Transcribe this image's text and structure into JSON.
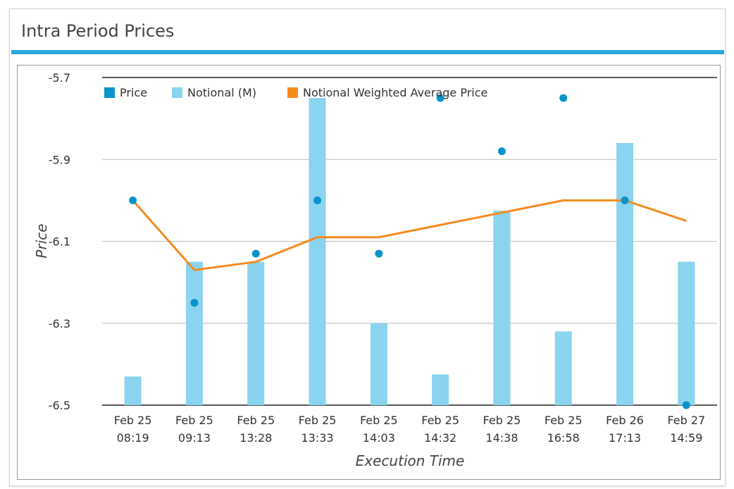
{
  "header": {
    "title": "Intra Period Prices"
  },
  "colors": {
    "accent": "#2aa8dc",
    "price": "#0a93c9",
    "notional": "#8ad4ef",
    "nwap": "#f58a1f"
  },
  "chart_data": {
    "type": "bar",
    "xlabel": "Execution Time",
    "ylabel": "Price",
    "ylim": [
      -6.5,
      -5.7
    ],
    "y_ticks": [
      "-5.7",
      "-5.9",
      "-6.1",
      "-6.3",
      "-6.5"
    ],
    "y_tick_values": [
      -5.7,
      -5.9,
      -6.1,
      -6.3,
      -6.5
    ],
    "grid": true,
    "legend_position": "top-left",
    "categories": [
      [
        "Feb 25",
        "08:19"
      ],
      [
        "Feb 25",
        "09:13"
      ],
      [
        "Feb 25",
        "13:28"
      ],
      [
        "Feb 25",
        "13:33"
      ],
      [
        "Feb 25",
        "14:03"
      ],
      [
        "Feb 25",
        "14:32"
      ],
      [
        "Feb 25",
        "14:38"
      ],
      [
        "Feb 25",
        "16:58"
      ],
      [
        "Feb 26",
        "17:13"
      ],
      [
        "Feb 27",
        "14:59"
      ]
    ],
    "series": [
      {
        "name": "Price",
        "kind": "scatter",
        "values": [
          -6.0,
          -6.25,
          -6.13,
          -6.0,
          -6.13,
          -5.75,
          -5.88,
          -5.75,
          -6.0,
          -6.5
        ]
      },
      {
        "name": "Notional (M)",
        "kind": "bar",
        "axis_scale": "price",
        "values": [
          -6.43,
          -6.15,
          -6.15,
          -5.75,
          -6.3,
          -6.425,
          -6.025,
          -6.32,
          -5.86,
          -6.15
        ]
      },
      {
        "name": "Notional Weighted Average Price",
        "kind": "line",
        "values": [
          -6.0,
          -6.17,
          -6.15,
          -6.09,
          -6.09,
          -6.06,
          -6.03,
          -6.0,
          -6.0,
          -6.05
        ]
      }
    ]
  }
}
